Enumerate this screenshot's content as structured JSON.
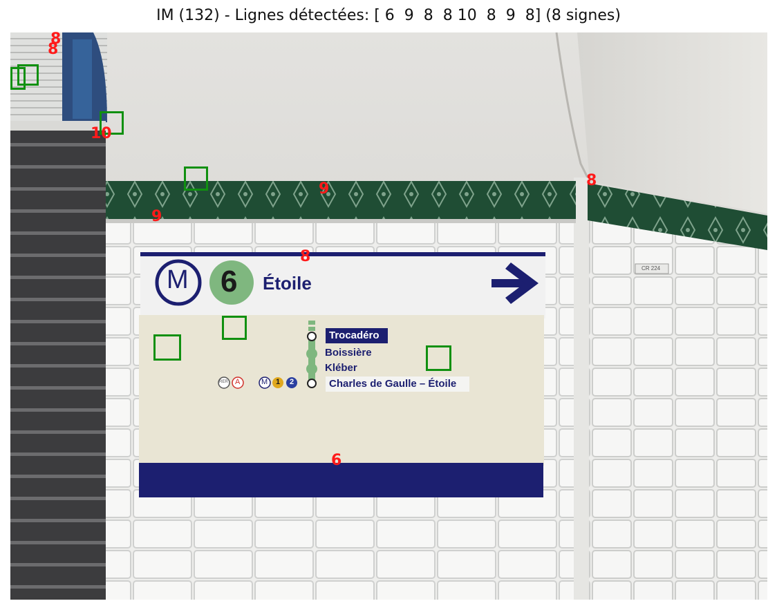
{
  "figure_title": "IM (132) - Lignes détectées: [ 6  9  8  8 10  8  9  8] (8 signes)",
  "sign": {
    "metro_letter": "M",
    "line_number": "6",
    "station": "Étoile",
    "stops": [
      "Trocadéro",
      "Boissière",
      "Kléber",
      "Charles de Gaulle – Étoile"
    ],
    "connection_badges": [
      "RER",
      "A",
      "M",
      "1",
      "2"
    ]
  },
  "wall_plate": "CR 224",
  "detection_labels": [
    "8",
    "8",
    "10",
    "9",
    "9",
    "8",
    "8",
    "6"
  ],
  "colors": {
    "detection_box": "#109010",
    "detection_label": "#ff1a1a",
    "sign_navy": "#1c1f70",
    "line6_green": "#7fb77f",
    "tile_band": "#1f4d34"
  }
}
